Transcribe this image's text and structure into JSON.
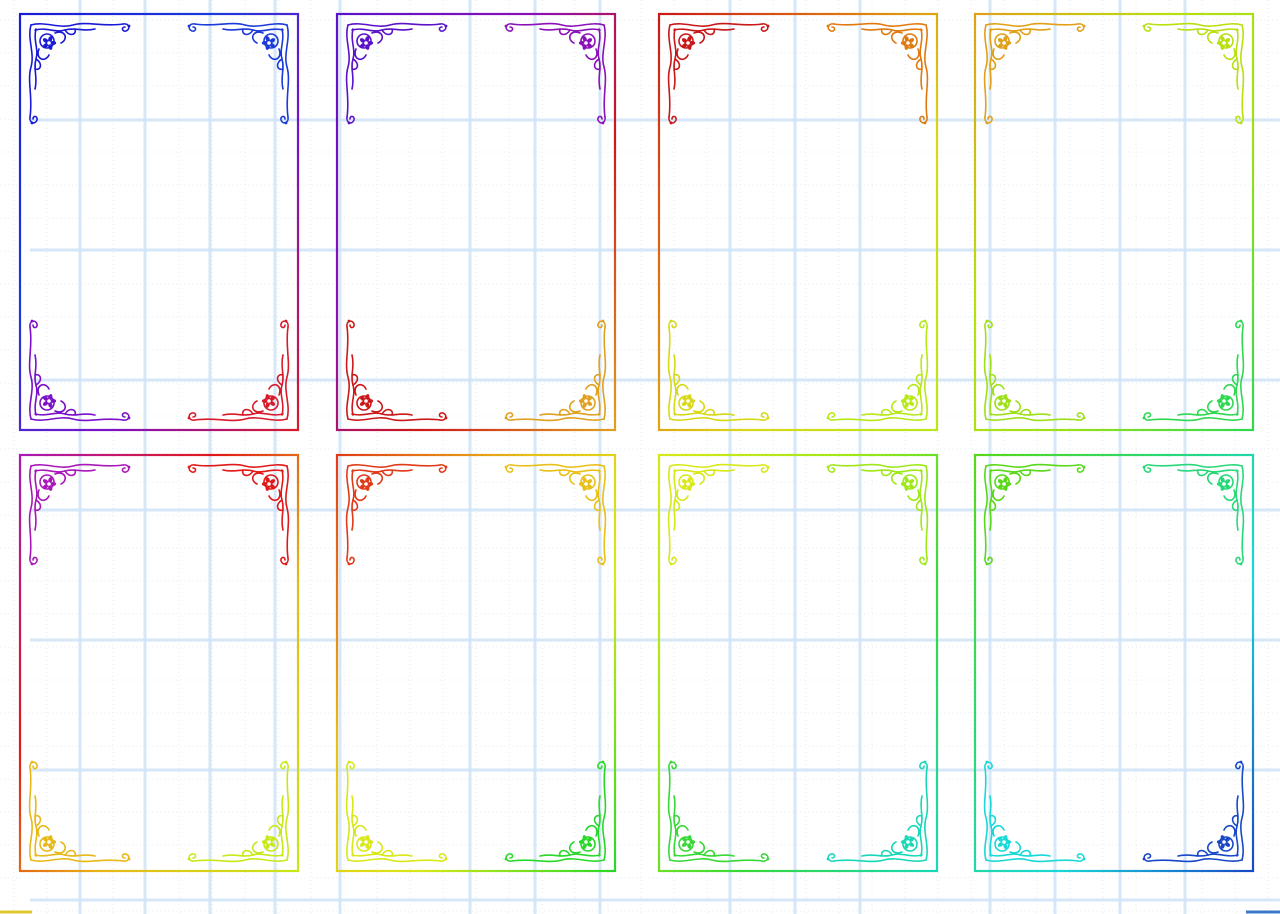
{
  "sheet": {
    "background": "#ffffff",
    "grid_major_color": "#cfe3f7",
    "grid_minor_color": "#dfe7ee"
  },
  "ornament": {
    "corner_style": "art-nouveau-scroll",
    "flower_icon": "five-petal-flower-icon"
  },
  "frames": [
    {
      "name": "card-frame-1",
      "colors": {
        "top_left": "#1a1ad6",
        "top_right": "#1a3ad9",
        "bottom_left": "#7a10c8",
        "bottom_right": "#d81a2a"
      }
    },
    {
      "name": "card-frame-2",
      "colors": {
        "top_left": "#5a12c8",
        "top_right": "#8a10b8",
        "bottom_left": "#cc1818",
        "bottom_right": "#e0a020"
      }
    },
    {
      "name": "card-frame-3",
      "colors": {
        "top_left": "#c81818",
        "top_right": "#e07a10",
        "bottom_left": "#d8d818",
        "bottom_right": "#b8e818"
      }
    },
    {
      "name": "card-frame-4",
      "colors": {
        "top_left": "#e0a018",
        "top_right": "#b8e010",
        "bottom_left": "#9ee018",
        "bottom_right": "#2ed850"
      }
    },
    {
      "name": "card-frame-5",
      "colors": {
        "top_left": "#a818b8",
        "top_right": "#e01818",
        "bottom_left": "#e8b818",
        "bottom_right": "#c8e818"
      }
    },
    {
      "name": "card-frame-6",
      "colors": {
        "top_left": "#e03a18",
        "top_right": "#e8c018",
        "bottom_left": "#d8e818",
        "bottom_right": "#28d828"
      }
    },
    {
      "name": "card-frame-7",
      "colors": {
        "top_left": "#d8e818",
        "top_right": "#9ee818",
        "bottom_left": "#38d838",
        "bottom_right": "#18d8b8"
      }
    },
    {
      "name": "card-frame-8",
      "colors": {
        "top_left": "#58d818",
        "top_right": "#28d878",
        "bottom_left": "#18d8d8",
        "bottom_right": "#1848c8"
      }
    }
  ]
}
